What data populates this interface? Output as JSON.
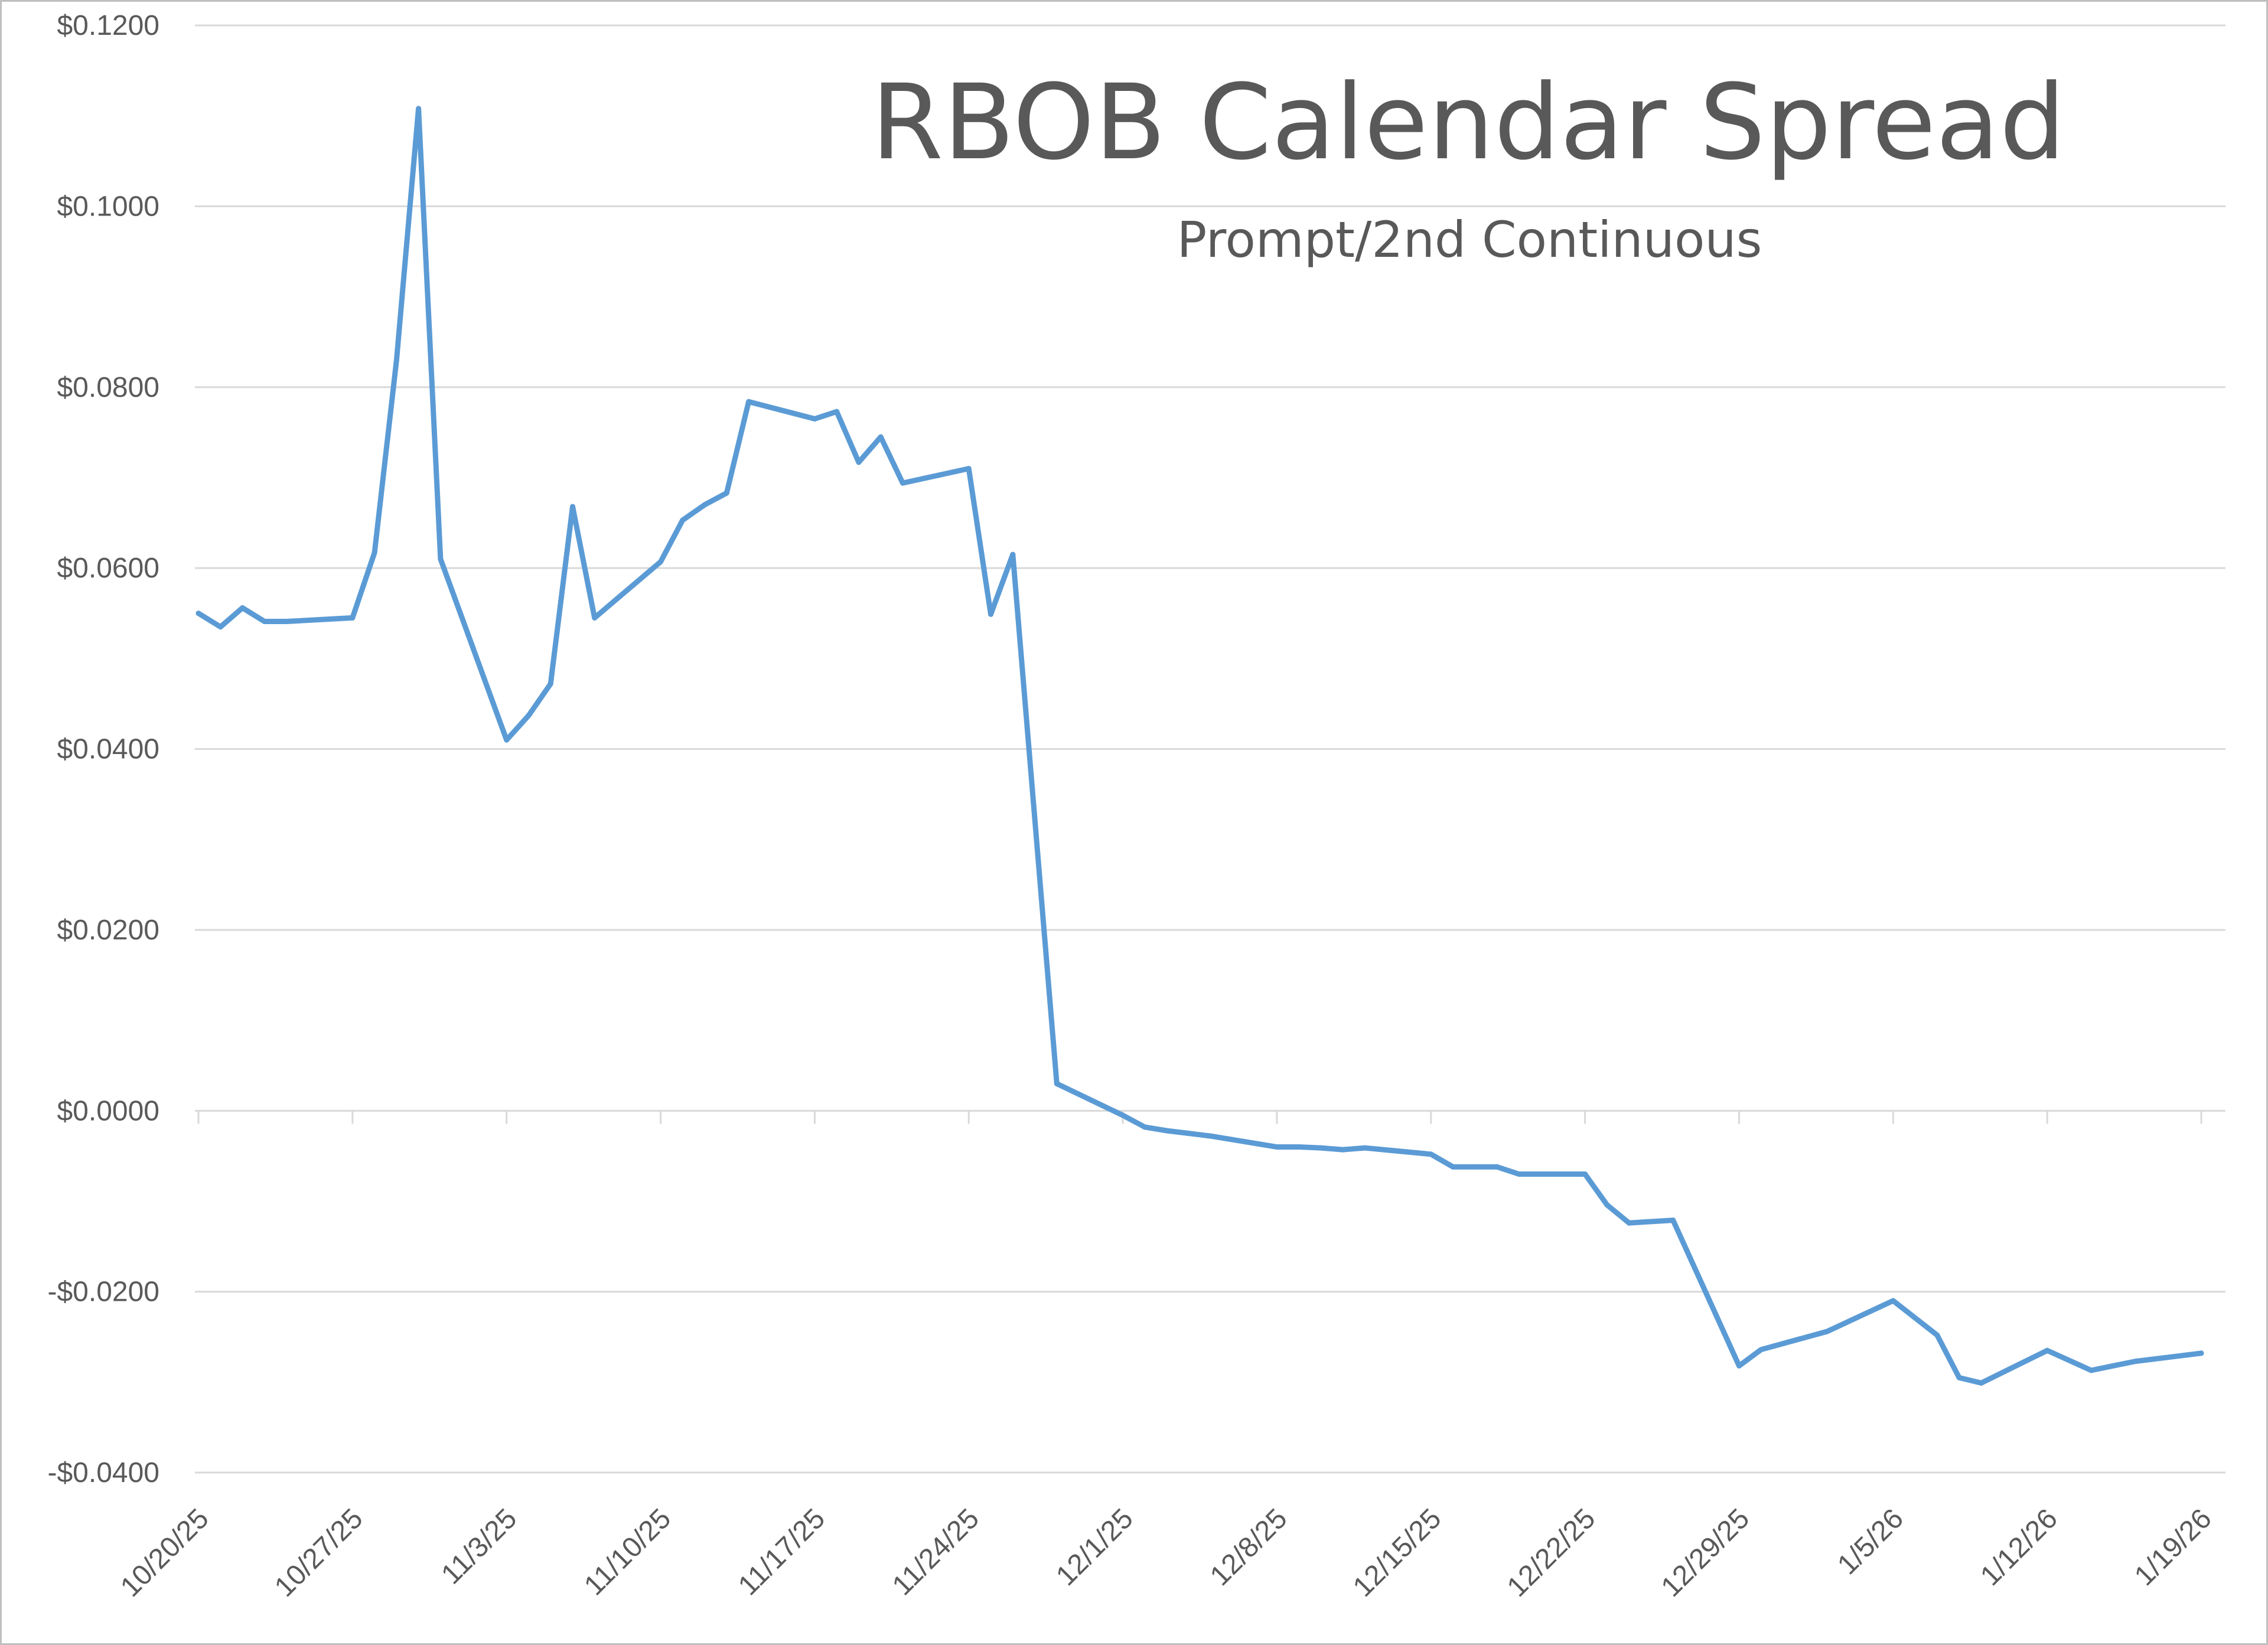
{
  "chart_data": {
    "type": "line",
    "title": "RBOB Calendar Spread",
    "subtitle": "Prompt/2nd Continuous",
    "xlabel": "",
    "ylabel": "",
    "ylim": [
      -0.04,
      0.12
    ],
    "yticks": [
      0.12,
      0.1,
      0.08,
      0.06,
      0.04,
      0.02,
      0.0,
      -0.02,
      -0.04
    ],
    "ytick_labels": [
      "$0.1200",
      "$0.1000",
      "$0.0800",
      "$0.0600",
      "$0.0400",
      "$0.0200",
      "$0.0000",
      "-$0.0200",
      "-$0.0400"
    ],
    "xlim": [
      "2025-10-20",
      "2026-01-19"
    ],
    "xtick_labels": [
      "10/20/25",
      "10/27/25",
      "11/3/25",
      "11/10/25",
      "11/17/25",
      "11/24/25",
      "12/1/25",
      "12/8/25",
      "12/15/25",
      "12/22/25",
      "12/29/25",
      "1/5/26",
      "1/12/26",
      "1/19/26"
    ],
    "grid": true,
    "legend": "none",
    "line_color": "#5b9bd5",
    "series": [
      {
        "x": [
          "2025-10-20",
          "2025-10-21",
          "2025-10-22",
          "2025-10-23",
          "2025-10-24",
          "2025-10-27",
          "2025-10-28",
          "2025-10-29",
          "2025-10-30",
          "2025-10-31",
          "2025-11-03",
          "2025-11-04",
          "2025-11-05",
          "2025-11-06",
          "2025-11-07",
          "2025-11-10",
          "2025-11-11",
          "2025-11-12",
          "2025-11-13",
          "2025-11-14",
          "2025-11-17",
          "2025-11-18",
          "2025-11-19",
          "2025-11-20",
          "2025-11-21",
          "2025-11-24",
          "2025-11-25",
          "2025-11-26",
          "2025-11-28",
          "2025-12-01",
          "2025-12-02",
          "2025-12-03",
          "2025-12-04",
          "2025-12-05",
          "2025-12-08",
          "2025-12-09",
          "2025-12-10",
          "2025-12-11",
          "2025-12-12",
          "2025-12-15",
          "2025-12-16",
          "2025-12-17",
          "2025-12-18",
          "2025-12-19",
          "2025-12-22",
          "2025-12-23",
          "2025-12-24",
          "2025-12-26",
          "2025-12-29",
          "2025-12-30",
          "2026-01-02",
          "2026-01-05",
          "2026-01-07",
          "2026-01-08",
          "2026-01-09",
          "2026-01-12",
          "2026-01-14",
          "2026-01-15",
          "2026-01-16",
          "2026-01-19"
        ],
        "values": [
          0.055,
          0.0535,
          0.0556,
          0.0541,
          0.0541,
          0.0545,
          0.0617,
          0.083,
          0.1108,
          0.061,
          0.041,
          0.0437,
          0.0472,
          0.0668,
          0.0545,
          0.0607,
          0.0653,
          0.067,
          0.0683,
          0.0784,
          0.0765,
          0.0773,
          0.0717,
          0.0745,
          0.0694,
          0.071,
          0.0549,
          0.0615,
          0.003,
          -0.0005,
          -0.0018,
          -0.0022,
          -0.0025,
          -0.0028,
          -0.004,
          -0.004,
          -0.0041,
          -0.0043,
          -0.0041,
          -0.0048,
          -0.0062,
          -0.0062,
          -0.0062,
          -0.007,
          -0.007,
          -0.0104,
          -0.0124,
          -0.0121,
          -0.0282,
          -0.0264,
          -0.0244,
          -0.021,
          -0.0248,
          -0.0295,
          -0.0301,
          -0.0265,
          -0.0287,
          -0.0282,
          -0.0277,
          -0.0268
        ]
      }
    ]
  }
}
